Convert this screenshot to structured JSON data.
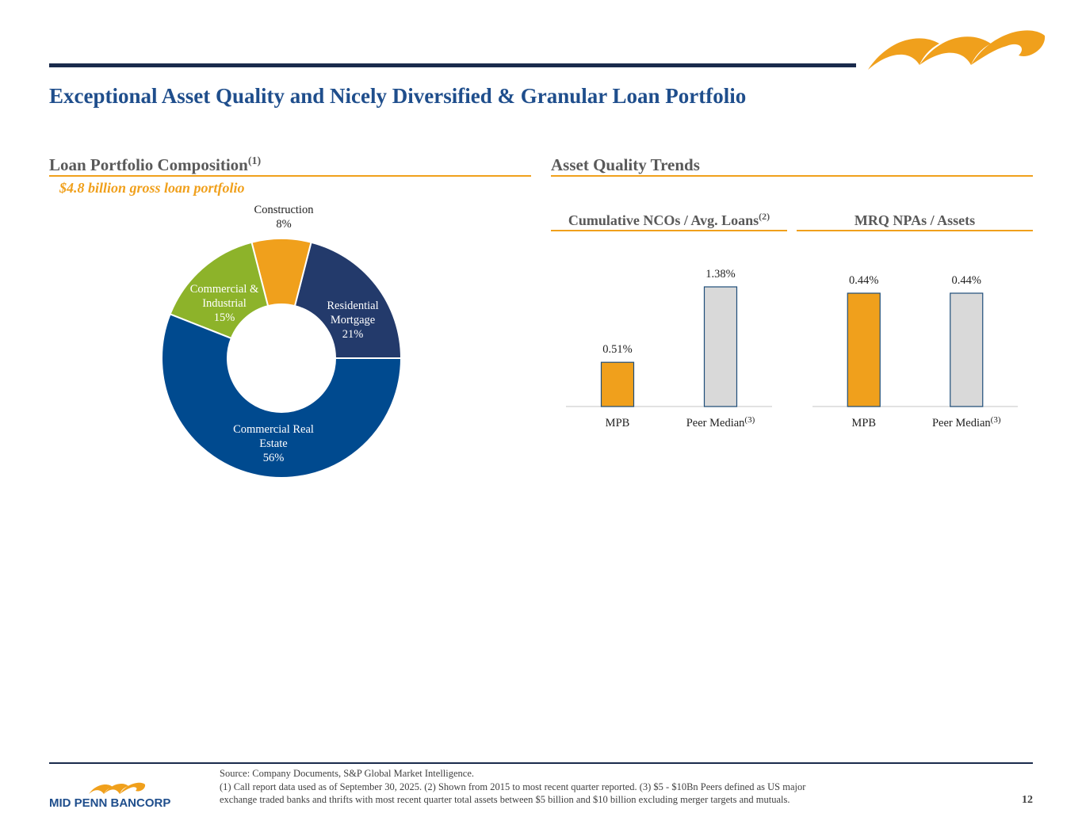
{
  "header": {
    "title": "Exceptional Asset Quality and Nicely Diversified & Granular Loan Portfolio"
  },
  "left_section": {
    "title": "Loan Portfolio Composition",
    "title_note": "(1)",
    "subtitle": "$4.8 billion gross loan portfolio"
  },
  "right_section": {
    "title": "Asset Quality Trends"
  },
  "chart_data": [
    {
      "type": "pie",
      "donut": true,
      "categories": [
        "Residential Mortgage",
        "Construction",
        "Commercial & Industrial",
        "Commercial Real Estate"
      ],
      "values": [
        21,
        8,
        15,
        56
      ],
      "value_labels": [
        "21%",
        "8%",
        "15%",
        "56%"
      ],
      "colors": [
        "#233a6b",
        "#f0a01c",
        "#8db32a",
        "#004a8f"
      ]
    },
    {
      "type": "bar",
      "title": "Cumulative NCOs / Avg. Loans",
      "title_note": "(2)",
      "categories": [
        "MPB",
        "Peer Median"
      ],
      "category_notes": [
        null,
        "(3)"
      ],
      "values": [
        0.51,
        1.38
      ],
      "value_labels": [
        "0.51%",
        "1.38%"
      ],
      "colors": [
        "#f0a01c",
        "#d9d9d9"
      ]
    },
    {
      "type": "bar",
      "title": "MRQ NPAs / Assets",
      "categories": [
        "MPB",
        "Peer Median"
      ],
      "category_notes": [
        null,
        "(3)"
      ],
      "values": [
        0.44,
        0.44
      ],
      "value_labels": [
        "0.44%",
        "0.44%"
      ],
      "colors": [
        "#f0a01c",
        "#d9d9d9"
      ]
    }
  ],
  "footer": {
    "source": "Source: Company Documents, S&P Global Market Intelligence.",
    "notes": [
      "(1) Call report data used as of September 30, 2025. (2) Shown from 2015 to most recent quarter reported. (3) $5 - $10Bn Peers defined as US major",
      "exchange traded banks and thrifts with most recent quarter total assets between $5 billion and $10 billion excluding merger targets and mutuals."
    ],
    "page": "12",
    "logo": "MID PENN BANCORP"
  }
}
